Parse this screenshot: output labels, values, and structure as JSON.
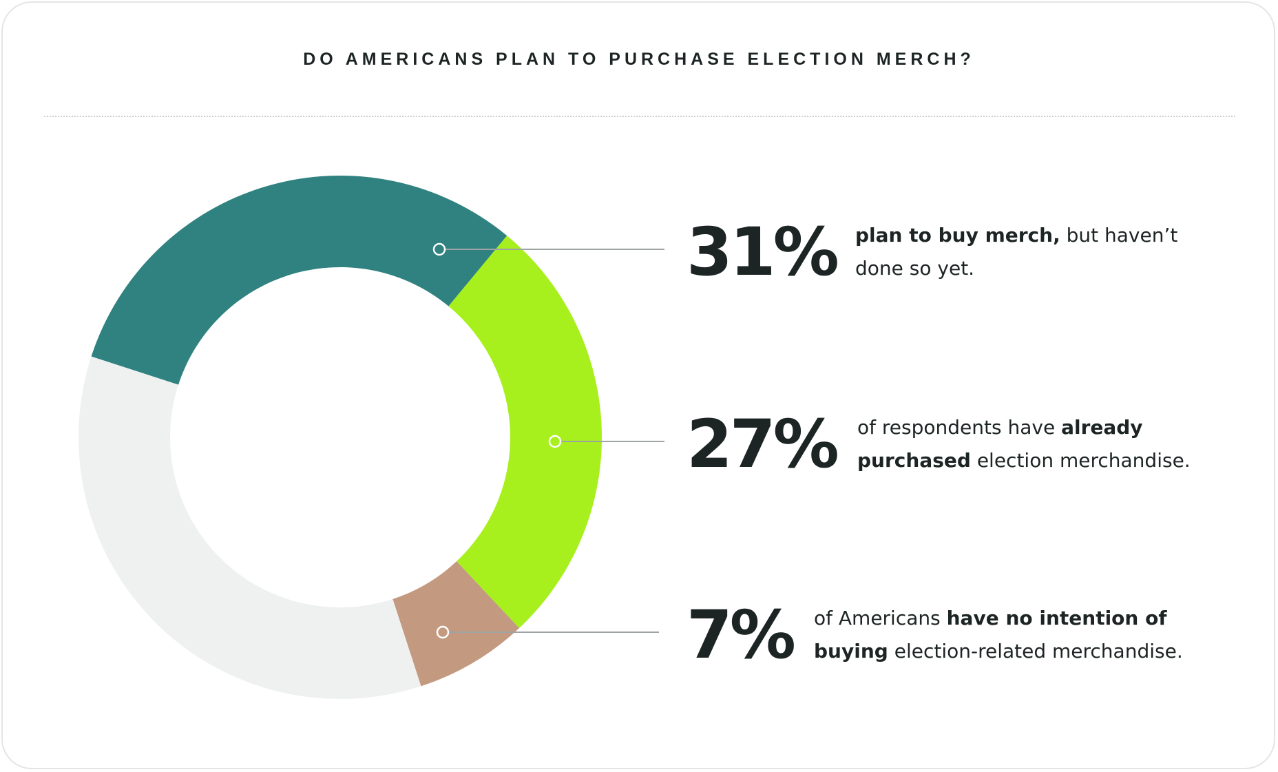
{
  "chart_data": {
    "type": "pie",
    "variant": "donut",
    "title": "DO AMERICANS PLAN TO PURCHASE ELECTION MERCH?",
    "slices": [
      {
        "value": 31,
        "label": "31%",
        "color": "#308280"
      },
      {
        "value": 27,
        "label": "27%",
        "color": "#a7f01e"
      },
      {
        "value": 7,
        "label": "7%",
        "color": "#c39a80"
      },
      {
        "value": 35,
        "label": "",
        "color": "#eff1f1"
      }
    ]
  },
  "stats": [
    {
      "pct": "31%",
      "parts": [
        {
          "bold": true,
          "text": "plan to buy merch,"
        },
        {
          "bold": false,
          "text": "  but haven’t done so yet."
        }
      ]
    },
    {
      "pct": "27%",
      "parts": [
        {
          "bold": false,
          "text": "of respondents have "
        },
        {
          "bold": true,
          "text": "already purchased"
        },
        {
          "bold": false,
          "text": " election merchandise."
        }
      ]
    },
    {
      "pct": "7%",
      "parts": [
        {
          "bold": false,
          "text": "of Americans "
        },
        {
          "bold": true,
          "text": "have no intention of buying"
        },
        {
          "bold": false,
          "text": " election-related merchandise."
        }
      ]
    }
  ]
}
